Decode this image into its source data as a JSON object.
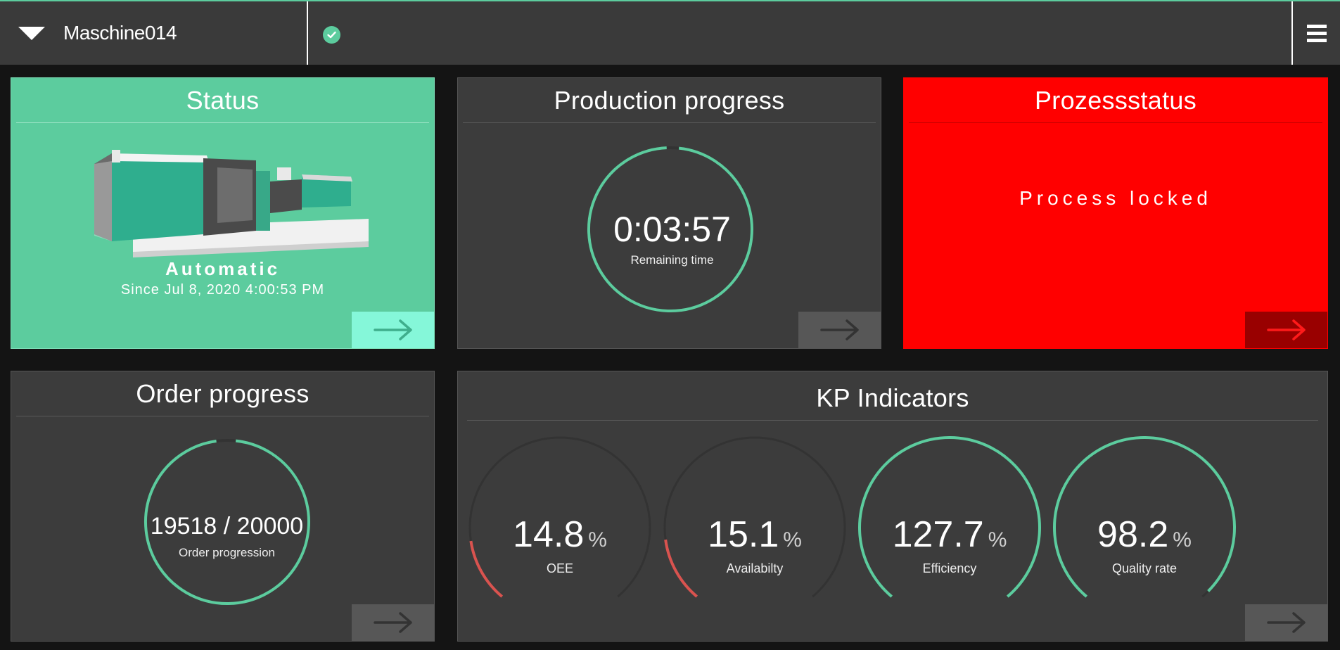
{
  "header": {
    "machine_name": "Maschine014"
  },
  "status_card": {
    "title": "Status",
    "mode": "Automatic",
    "since": "Since Jul 8, 2020 4:00:53 PM"
  },
  "production_card": {
    "title": "Production progress",
    "time": "0:03:57",
    "sub_label": "Remaining time",
    "progress_fraction": 0.99
  },
  "process_card": {
    "title": "Prozessstatus",
    "message": "Process locked"
  },
  "order_card": {
    "title": "Order progress",
    "value": "19518 / 20000",
    "sub_label": "Order progression",
    "progress_fraction": 0.976
  },
  "kpi_card": {
    "title": "KP Indicators",
    "unit": "%",
    "gauges": [
      {
        "value": "14.8",
        "label": "OEE",
        "fraction": 0.148,
        "color": "#d9534f"
      },
      {
        "value": "15.1",
        "label": "Availabilty",
        "fraction": 0.151,
        "color": "#d9534f"
      },
      {
        "value": "127.7",
        "label": "Efficiency",
        "fraction": 1.0,
        "color": "#5ccc9e"
      },
      {
        "value": "98.2",
        "label": "Quality rate",
        "fraction": 0.982,
        "color": "#5ccc9e"
      }
    ]
  },
  "colors": {
    "accent": "#5ccc9e",
    "alert": "#ff0000",
    "card_bg": "#3c3c3c"
  }
}
